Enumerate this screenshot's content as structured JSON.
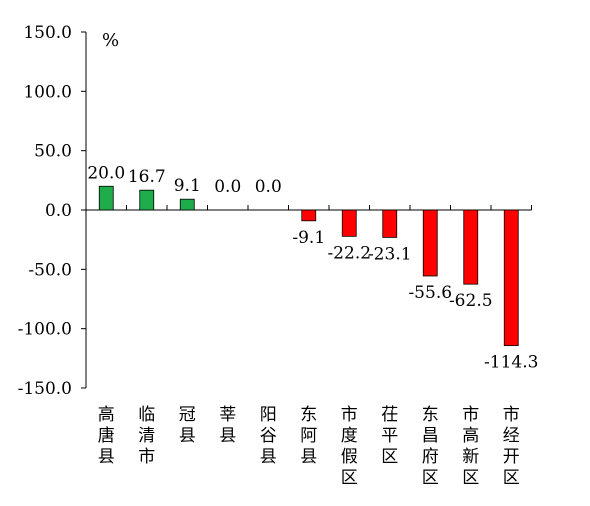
{
  "chart_data": {
    "type": "bar",
    "unit_label": "%",
    "categories": [
      "高唐县",
      "临清市",
      "冠县",
      "莘县",
      "阳谷县",
      "东阿县",
      "市度假区",
      "茌平区",
      "东昌府区",
      "市高新区",
      "市经开区"
    ],
    "values": [
      20.0,
      16.7,
      9.1,
      0.0,
      0.0,
      -9.1,
      -22.2,
      -23.1,
      -55.6,
      -62.5,
      -114.3
    ],
    "value_labels": [
      "20.0",
      "16.7",
      "9.1",
      "0.0",
      "0.0",
      "-9.1",
      "-22.2",
      "-23.1",
      "-55.6",
      "-62.5",
      "-114.3"
    ],
    "ylim": [
      -150,
      150
    ],
    "yticks": [
      150,
      100,
      50,
      0,
      -50,
      -100,
      -150
    ],
    "ytick_labels": [
      "150.0",
      "100.0",
      "50.0",
      "0.0",
      "-50.0",
      "-100.0",
      "-150.0"
    ],
    "colors": {
      "positive": "#1fad4b",
      "negative": "#ff0000",
      "axis": "#000000"
    },
    "grid": false,
    "legend": "none"
  }
}
